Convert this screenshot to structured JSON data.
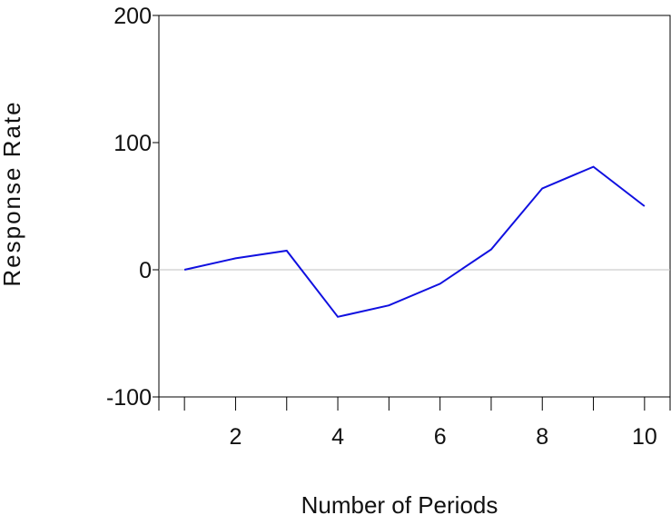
{
  "chart_data": {
    "type": "line",
    "title": "",
    "xlabel": "Number of Periods",
    "ylabel": "Response Rate",
    "x": [
      1,
      2,
      3,
      4,
      5,
      6,
      7,
      8,
      9,
      10
    ],
    "series": [
      {
        "values": [
          0,
          9,
          15,
          -37,
          -28,
          -11,
          16,
          64,
          81,
          50
        ],
        "color": "#1010e0"
      }
    ],
    "xlim": [
      0.5,
      10.5
    ],
    "ylim": [
      -100,
      200
    ],
    "x_ticks": [
      2,
      4,
      6,
      8,
      10
    ],
    "y_ticks": [
      -100,
      0,
      100,
      200
    ],
    "zero_line": true,
    "grid": false,
    "legend": "none"
  },
  "colors": {
    "series_line": "#1010e0",
    "axis": "#000000",
    "zero_line": "#c0c0c0"
  }
}
